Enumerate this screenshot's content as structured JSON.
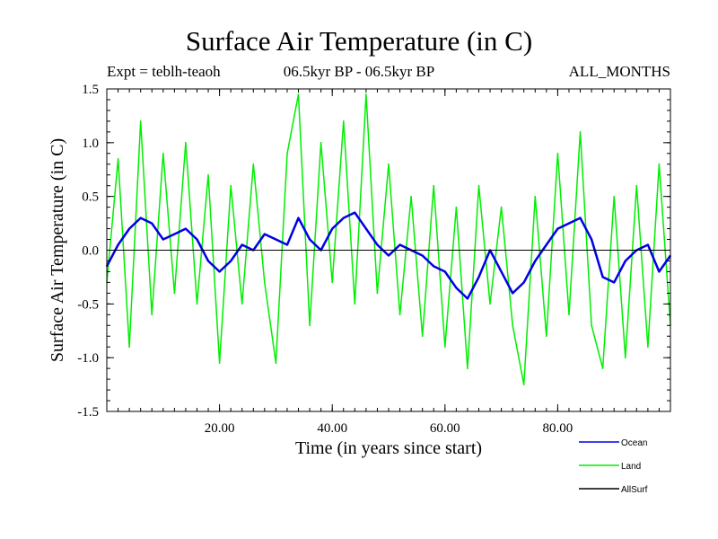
{
  "header": {
    "title": "Surface Air Temperature (in C)",
    "expt": "Expt = teblh-teaoh",
    "period": "06.5kyr BP - 06.5kyr BP",
    "months": "ALL_MONTHS"
  },
  "chart_data": {
    "type": "line",
    "title": "Surface Air Temperature (in C)",
    "xlabel": "Time (in years since start)",
    "ylabel": "Surface Air Temperature (in C)",
    "xlim": [
      0,
      100
    ],
    "ylim": [
      -1.5,
      1.5
    ],
    "x_ticks": [
      20,
      40,
      60,
      80
    ],
    "x_tick_labels": [
      "20.00",
      "40.00",
      "60.00",
      "80.00"
    ],
    "y_ticks": [
      -1.5,
      -1.0,
      -0.5,
      0.0,
      0.5,
      1.0,
      1.5
    ],
    "y_tick_labels": [
      "-1.5",
      "-1.0",
      "-0.5",
      "0.0",
      "0.5",
      "1.0",
      "1.5"
    ],
    "zero_line": true,
    "legend_position": "bottom-right, outside plot",
    "series": [
      {
        "name": "Ocean",
        "color": "#0000e6",
        "x": [
          0,
          2,
          4,
          6,
          8,
          10,
          12,
          14,
          16,
          18,
          20,
          22,
          24,
          26,
          28,
          30,
          32,
          34,
          36,
          38,
          40,
          42,
          44,
          46,
          48,
          50,
          52,
          54,
          56,
          58,
          60,
          62,
          64,
          66,
          68,
          70,
          72,
          74,
          76,
          78,
          80,
          82,
          84,
          86,
          88,
          90,
          92,
          94,
          96,
          98,
          100
        ],
        "values": [
          -0.15,
          0.05,
          0.2,
          0.3,
          0.25,
          0.1,
          0.15,
          0.2,
          0.1,
          -0.1,
          -0.2,
          -0.1,
          0.05,
          0.0,
          0.15,
          0.1,
          0.05,
          0.3,
          0.1,
          0.0,
          0.2,
          0.3,
          0.35,
          0.2,
          0.05,
          -0.05,
          0.05,
          0.0,
          -0.05,
          -0.15,
          -0.2,
          -0.35,
          -0.45,
          -0.25,
          0.0,
          -0.2,
          -0.4,
          -0.3,
          -0.1,
          0.05,
          0.2,
          0.25,
          0.3,
          0.1,
          -0.25,
          -0.3,
          -0.1,
          0.0,
          0.05,
          -0.2,
          -0.05
        ]
      },
      {
        "name": "Land",
        "color": "#00ee00",
        "x": [
          0,
          2,
          4,
          6,
          8,
          10,
          12,
          14,
          16,
          18,
          20,
          22,
          24,
          26,
          28,
          30,
          32,
          34,
          36,
          38,
          40,
          42,
          44,
          46,
          48,
          50,
          52,
          54,
          56,
          58,
          60,
          62,
          64,
          66,
          68,
          70,
          72,
          74,
          76,
          78,
          80,
          82,
          84,
          86,
          88,
          90,
          92,
          94,
          96,
          98,
          100
        ],
        "values": [
          -0.3,
          0.85,
          -0.9,
          1.2,
          -0.6,
          0.9,
          -0.4,
          1.0,
          -0.5,
          0.7,
          -1.05,
          0.6,
          -0.5,
          0.8,
          -0.3,
          -1.05,
          0.9,
          1.45,
          -0.7,
          1.0,
          -0.3,
          1.2,
          -0.5,
          1.45,
          -0.4,
          0.8,
          -0.6,
          0.5,
          -0.8,
          0.6,
          -0.9,
          0.4,
          -1.1,
          0.6,
          -0.5,
          0.4,
          -0.7,
          -1.25,
          0.5,
          -0.8,
          0.9,
          -0.6,
          1.1,
          -0.7,
          -1.1,
          0.5,
          -1.0,
          0.6,
          -0.9,
          0.8,
          -0.7
        ]
      },
      {
        "name": "AllSurf",
        "color": "#000000",
        "x": [],
        "values": []
      }
    ]
  }
}
